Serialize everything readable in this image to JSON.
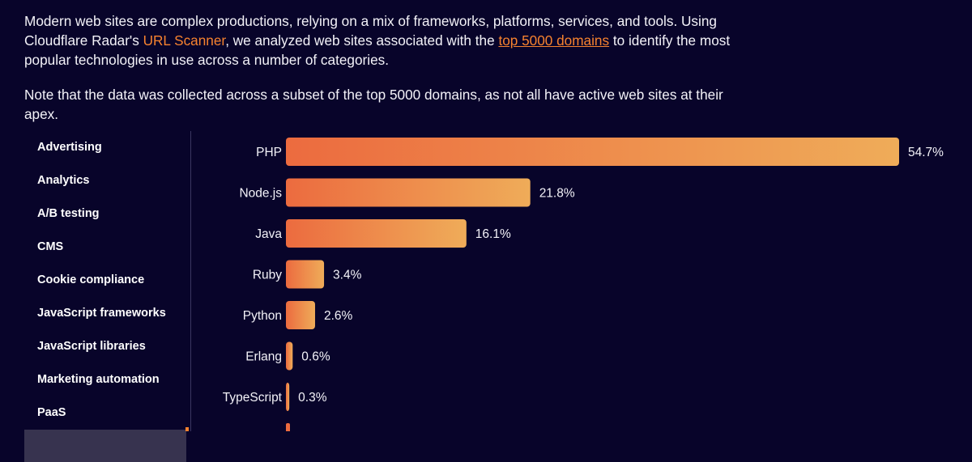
{
  "intro": {
    "p1_before": "Modern web sites are complex productions, relying on a mix of frameworks, platforms, services, and tools. Using Cloudflare Radar's ",
    "p1_link1": "URL Scanner",
    "p1_middle": ", we analyzed web sites associated with the ",
    "p1_link2": "top 5000 domains",
    "p1_after": " to identify the most popular technologies in use across a number of categories.",
    "p2": "Note that the data was collected across a subset of the top 5000 domains, as not all have active web sites at their apex."
  },
  "sidebar": {
    "items": [
      {
        "label": "Advertising"
      },
      {
        "label": "Analytics"
      },
      {
        "label": "A/B testing"
      },
      {
        "label": "CMS"
      },
      {
        "label": "Cookie compliance"
      },
      {
        "label": "JavaScript frameworks"
      },
      {
        "label": "JavaScript libraries"
      },
      {
        "label": "Marketing automation"
      },
      {
        "label": "PaaS"
      }
    ]
  },
  "colors": {
    "bar_start": "#ec6b3f",
    "bar_end": "#efac59",
    "accent": "#f6822f"
  },
  "chart_data": {
    "type": "bar",
    "orientation": "horizontal",
    "categories": [
      "PHP",
      "Node.js",
      "Java",
      "Ruby",
      "Python",
      "Erlang",
      "TypeScript"
    ],
    "values": [
      54.7,
      21.8,
      16.1,
      3.4,
      2.6,
      0.6,
      0.3
    ],
    "value_labels": [
      "54.7%",
      "21.8%",
      "16.1%",
      "3.4%",
      "2.6%",
      "0.6%",
      "0.3%"
    ],
    "unit": "%"
  }
}
